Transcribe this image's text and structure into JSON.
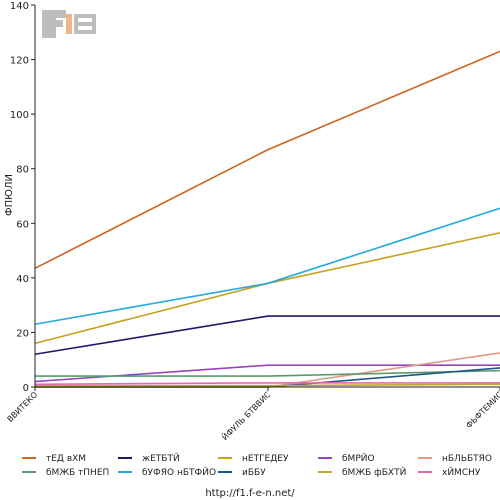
{
  "chart_data": {
    "type": "line",
    "ylabel": "ФПЮЛИ",
    "ylim": [
      0,
      140
    ],
    "yticks": [
      0,
      20,
      40,
      60,
      80,
      100,
      120,
      140
    ],
    "categories": [
      "ВВИТЕКО",
      "ЙФУЛЬ БТВВИС",
      "ФЬФТЕМИС"
    ],
    "series": [
      {
        "name": "тЕД вХМ",
        "color": "#cc6622",
        "values": [
          43.5,
          87,
          123
        ]
      },
      {
        "name": "жЕТБТЙ",
        "color": "#1a1a66",
        "values": [
          12,
          26,
          26
        ]
      },
      {
        "name": "нЕТГЕДЕУ",
        "color": "#c9a020",
        "values": [
          16,
          38,
          56.5
        ]
      },
      {
        "name": "бМРЙО",
        "color": "#9944bb",
        "values": [
          2,
          8,
          8
        ]
      },
      {
        "name": "нБЛЬБТЯО",
        "color": "#e09a88",
        "values": [
          0,
          0,
          12.5
        ]
      },
      {
        "name": "бМЖБ тПНЕП",
        "color": "#5a9a6a",
        "values": [
          4,
          4,
          6
        ]
      },
      {
        "name": "бУФЯО нБТФЙО",
        "color": "#22aadd",
        "values": [
          23,
          38,
          65.5
        ]
      },
      {
        "name": "иББУ",
        "color": "#225588",
        "values": [
          0,
          0,
          7
        ]
      },
      {
        "name": "бМЖБ фБХТЙ",
        "color": "#c0a828",
        "values": [
          0.5,
          0.5,
          1
        ]
      },
      {
        "name": "хЙМСНУ",
        "color": "#ee66aa",
        "values": [
          1,
          1.5,
          1.5
        ]
      }
    ],
    "legend_position": "bottom",
    "grid": false
  },
  "footer": {
    "url": "http://f1.f-e-n.net/"
  }
}
